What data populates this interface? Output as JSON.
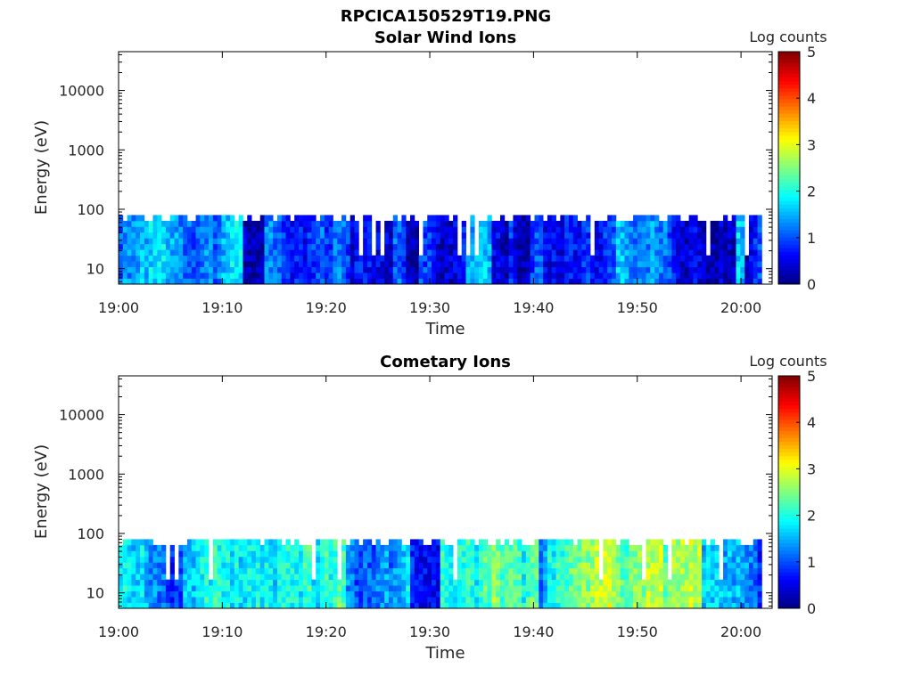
{
  "figure": {
    "filename": "RPCICA150529T19.PNG"
  },
  "colormap": "jet",
  "colors": {
    "axes": "#000000",
    "background": "#ffffff"
  },
  "chart_data": [
    {
      "type": "heatmap",
      "title": "Solar Wind Ions",
      "xlabel": "Time",
      "ylabel": "Energy (eV)",
      "yscale": "log",
      "xlim": [
        "19:00",
        "20:03"
      ],
      "ylim": [
        5.5,
        45000
      ],
      "xticks": [
        "19:00",
        "19:10",
        "19:20",
        "19:30",
        "19:40",
        "19:50",
        "20:00"
      ],
      "yticks": [
        "10",
        "100",
        "1000",
        "10000"
      ],
      "colorbar": {
        "label": "Log counts",
        "range": [
          0,
          5
        ],
        "ticks": [
          "0",
          "1",
          "2",
          "3",
          "4",
          "5"
        ]
      },
      "data_energy_range_eV": [
        5.5,
        80
      ],
      "data_time_range": [
        "19:00",
        "20:02"
      ],
      "typical_log_counts_range": [
        0.2,
        1.8
      ],
      "grid": false
    },
    {
      "type": "heatmap",
      "title": "Cometary Ions",
      "xlabel": "Time",
      "ylabel": "Energy (eV)",
      "yscale": "log",
      "xlim": [
        "19:00",
        "20:03"
      ],
      "ylim": [
        5.5,
        45000
      ],
      "xticks": [
        "19:00",
        "19:10",
        "19:20",
        "19:30",
        "19:40",
        "19:50",
        "20:00"
      ],
      "yticks": [
        "10",
        "100",
        "1000",
        "10000"
      ],
      "colorbar": {
        "label": "Log counts",
        "range": [
          0,
          5
        ],
        "ticks": [
          "0",
          "1",
          "2",
          "3",
          "4",
          "5"
        ]
      },
      "data_energy_range_eV": [
        5.5,
        80
      ],
      "data_time_range": [
        "19:00",
        "20:02"
      ],
      "typical_log_counts_range": [
        0.6,
        2.9
      ],
      "grid": false
    }
  ]
}
